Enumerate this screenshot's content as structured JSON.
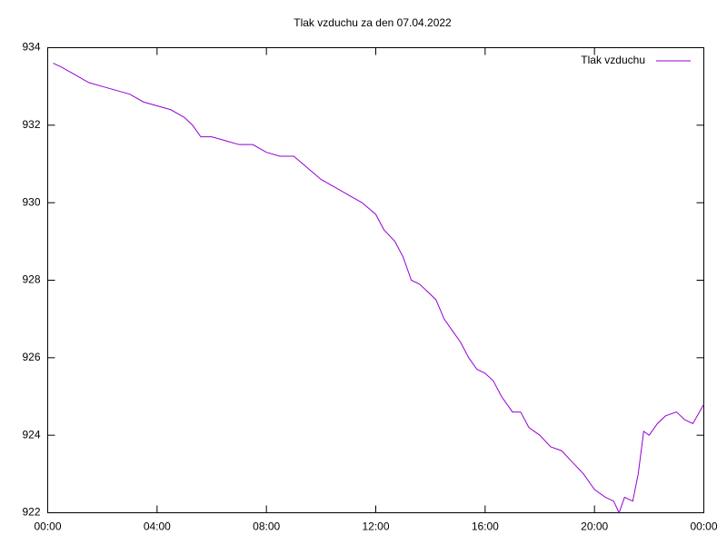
{
  "chart_data": {
    "type": "line",
    "title": "Tlak vzduchu za den 07.04.2022",
    "x": [
      0.2,
      0.5,
      1.0,
      1.5,
      2.0,
      2.5,
      3.0,
      3.5,
      4.0,
      4.5,
      5.0,
      5.3,
      5.6,
      6.0,
      6.5,
      7.0,
      7.5,
      8.0,
      8.5,
      9.0,
      9.5,
      10.0,
      10.5,
      11.0,
      11.5,
      12.0,
      12.3,
      12.7,
      13.0,
      13.3,
      13.6,
      13.9,
      14.2,
      14.5,
      14.8,
      15.1,
      15.4,
      15.7,
      16.0,
      16.3,
      16.6,
      17.0,
      17.3,
      17.6,
      18.0,
      18.4,
      18.8,
      19.2,
      19.6,
      20.0,
      20.4,
      20.7,
      20.9,
      21.1,
      21.4,
      21.6,
      21.8,
      22.0,
      22.3,
      22.6,
      23.0,
      23.3,
      23.6,
      24.0
    ],
    "series": [
      {
        "name": "Tlak vzduchu",
        "color": "#9400d3",
        "values": [
          933.6,
          933.5,
          933.3,
          933.1,
          933.0,
          932.9,
          932.8,
          932.6,
          932.5,
          932.4,
          932.2,
          932.0,
          931.7,
          931.7,
          931.6,
          931.5,
          931.5,
          931.3,
          931.2,
          931.2,
          930.9,
          930.6,
          930.4,
          930.2,
          930.0,
          929.7,
          929.3,
          929.0,
          928.6,
          928.0,
          927.9,
          927.7,
          927.5,
          927.0,
          926.7,
          926.4,
          926.0,
          925.7,
          925.6,
          925.4,
          925.0,
          924.6,
          924.6,
          924.2,
          924.0,
          923.7,
          923.6,
          923.3,
          923.0,
          922.6,
          922.4,
          922.3,
          922.0,
          922.4,
          922.3,
          923.0,
          924.1,
          924.0,
          924.3,
          924.5,
          924.6,
          924.4,
          924.3,
          924.8
        ]
      }
    ],
    "xlim": [
      0,
      24
    ],
    "xticks": [
      {
        "value": 0,
        "label": "00:00"
      },
      {
        "value": 4,
        "label": "04:00"
      },
      {
        "value": 8,
        "label": "08:00"
      },
      {
        "value": 12,
        "label": "12:00"
      },
      {
        "value": 16,
        "label": "16:00"
      },
      {
        "value": 20,
        "label": "20:00"
      },
      {
        "value": 24,
        "label": "00:00"
      }
    ],
    "ylim": [
      922,
      934
    ],
    "yticks": [
      922,
      924,
      926,
      928,
      930,
      932,
      934
    ],
    "grid": false,
    "legend": "top-right"
  }
}
